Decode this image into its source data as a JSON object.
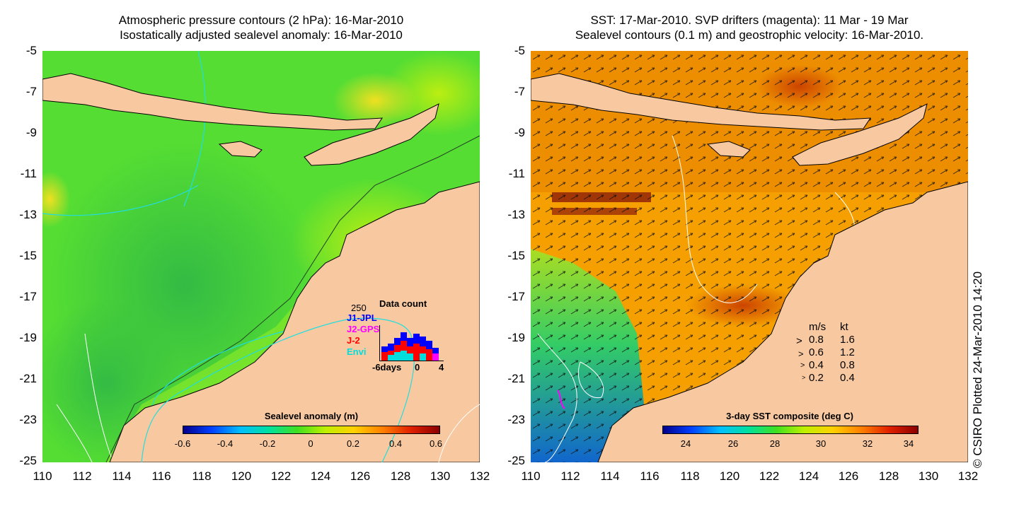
{
  "left_panel": {
    "title_line1": "Atmospheric pressure contours (2 hPa): 16-Mar-2010",
    "title_line2": "Isostatically adjusted sealevel anomaly: 16-Mar-2010",
    "colorbar": {
      "label": "Sealevel anomaly (m)",
      "ticks": [
        "-0.6",
        "-0.4",
        "-0.2",
        "0",
        "0.2",
        "0.4",
        "0.6"
      ]
    },
    "data_count": {
      "title": "Data count",
      "max_label": "250",
      "sources": [
        {
          "name": "J1-JPL",
          "color": "#0000ff"
        },
        {
          "name": "J2-GPS",
          "color": "#ff00ff"
        },
        {
          "name": "J-2",
          "color": "#ff0000"
        },
        {
          "name": "Envi",
          "color": "#00dddd"
        }
      ],
      "xaxis_labels": [
        "-6days",
        "0",
        "4"
      ]
    }
  },
  "right_panel": {
    "title_line1": "SST: 17-Mar-2010. SVP drifters (magenta): 11 Mar - 19 Mar",
    "title_line2": "Sealevel contours (0.1 m) and geostrophic velocity: 16-Mar-2010.",
    "colorbar": {
      "label": "3-day SST composite (deg C)",
      "ticks": [
        "24",
        "26",
        "28",
        "30",
        "32",
        "34"
      ]
    },
    "velocity_legend": {
      "header_ms": "m/s",
      "header_kt": "kt",
      "rows": [
        {
          "ms": "0.8",
          "kt": "1.6"
        },
        {
          "ms": "0.6",
          "kt": "1.2"
        },
        {
          "ms": "0.4",
          "kt": "0.8"
        },
        {
          "ms": "0.2",
          "kt": "0.4"
        }
      ]
    }
  },
  "axes": {
    "lat_ticks": [
      "-5",
      "-7",
      "-9",
      "-11",
      "-13",
      "-15",
      "-17",
      "-19",
      "-21",
      "-23",
      "-25"
    ],
    "lon_ticks": [
      "110",
      "112",
      "114",
      "116",
      "118",
      "120",
      "122",
      "124",
      "126",
      "128",
      "130",
      "132"
    ]
  },
  "credit": "© CSIRO Plotted 24-Mar-2010 14:20",
  "colors": {
    "land": "#f8c9a0",
    "sla_ocean": "#55dd33",
    "sst_ocean": "#f5a000"
  }
}
